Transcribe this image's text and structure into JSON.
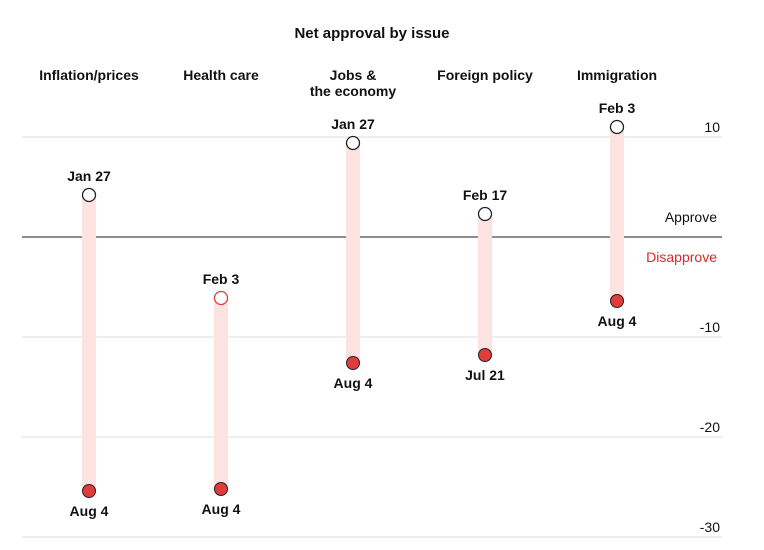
{
  "chart_data": {
    "type": "range-dot",
    "title": "Net approval by issue",
    "ylim": [
      -30,
      11
    ],
    "y_ticks": [
      {
        "value": 10,
        "label": "10"
      },
      {
        "value": -10,
        "label": "-10"
      },
      {
        "value": -20,
        "label": "-20"
      },
      {
        "value": -30,
        "label": "-30"
      }
    ],
    "zone_labels": {
      "approve": "Approve",
      "disapprove": "Disapprove"
    },
    "categories": [
      {
        "name_lines": [
          "Inflation/prices"
        ],
        "start": {
          "date": "Jan 27",
          "value": 4.2
        },
        "end": {
          "date": "Aug 4",
          "value": -25.4
        }
      },
      {
        "name_lines": [
          "Health care"
        ],
        "start": {
          "date": "Feb 3",
          "value": -6.1
        },
        "end": {
          "date": "Aug 4",
          "value": -25.2
        }
      },
      {
        "name_lines": [
          "Jobs &",
          "the economy"
        ],
        "start": {
          "date": "Jan 27",
          "value": 9.4
        },
        "end": {
          "date": "Aug 4",
          "value": -12.6
        }
      },
      {
        "name_lines": [
          "Foreign policy"
        ],
        "start": {
          "date": "Feb 17",
          "value": 2.3
        },
        "end": {
          "date": "Jul 21",
          "value": -11.8
        }
      },
      {
        "name_lines": [
          "Immigration"
        ],
        "start": {
          "date": "Feb 3",
          "value": 11.0
        },
        "end": {
          "date": "Aug 4",
          "value": -6.4
        }
      }
    ],
    "colors": {
      "range_bar": "#fde2e2",
      "end_dot": "#e23b3b",
      "start_dot_stroke": "#222222",
      "start_dot_stroke_negative": "#e23b3b",
      "zero_line": "#666666",
      "grid": "#dddddd",
      "disapprove_text": "#d62a2a"
    }
  }
}
